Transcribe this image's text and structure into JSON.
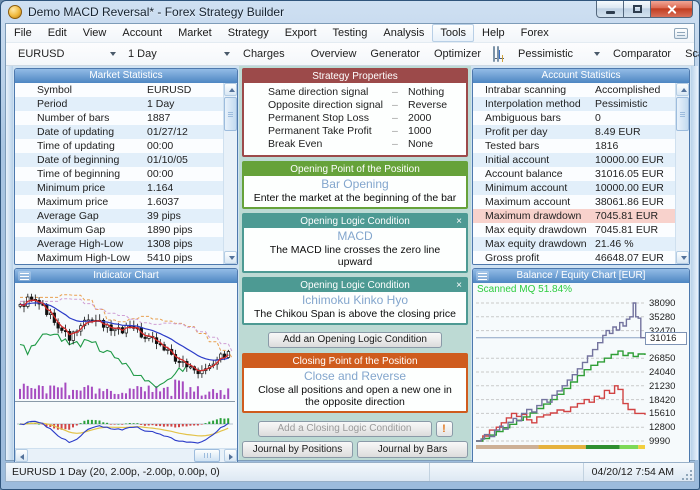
{
  "window": {
    "title": "Demo MACD Reversal* - Forex Strategy Builder"
  },
  "icons": {
    "close_x": "×"
  },
  "menu": {
    "items": [
      "File",
      "Edit",
      "View",
      "Account",
      "Market",
      "Strategy",
      "Export",
      "Testing",
      "Analysis",
      "Tools",
      "Help",
      "Forex"
    ]
  },
  "toolbar": {
    "symbol": "EURUSD",
    "period": "1 Day",
    "charges": "Charges",
    "overview": "Overview",
    "generator": "Generator",
    "optimizer": "Optimizer",
    "method": "Pessimistic",
    "comparator": "Comparator",
    "scanner": "Scanner"
  },
  "market_statistics": {
    "title": "Market Statistics",
    "rows": [
      {
        "label": "Symbol",
        "value": "EURUSD"
      },
      {
        "label": "Period",
        "value": "1 Day"
      },
      {
        "label": "Number of bars",
        "value": "1887"
      },
      {
        "label": "Date of updating",
        "value": "01/27/12"
      },
      {
        "label": "Time of updating",
        "value": "00:00"
      },
      {
        "label": "Date of beginning",
        "value": "01/10/05"
      },
      {
        "label": "Time of beginning",
        "value": "00:00"
      },
      {
        "label": "Minimum price",
        "value": "1.164"
      },
      {
        "label": "Maximum price",
        "value": "1.6037"
      },
      {
        "label": "Average Gap",
        "value": "39 pips"
      },
      {
        "label": "Maximum Gap",
        "value": "1890 pips"
      },
      {
        "label": "Average High-Low",
        "value": "1308 pips"
      },
      {
        "label": "Maximum High-Low",
        "value": "5410 pips"
      }
    ]
  },
  "account_statistics": {
    "title": "Account Statistics",
    "rows": [
      {
        "label": "Intrabar scanning",
        "value": "Accomplished"
      },
      {
        "label": "Interpolation method",
        "value": "Pessimistic"
      },
      {
        "label": "Ambiguous bars",
        "value": "0"
      },
      {
        "label": "Profit per day",
        "value": "8.49 EUR"
      },
      {
        "label": "Tested bars",
        "value": "1816"
      },
      {
        "label": "Initial account",
        "value": "10000.00 EUR"
      },
      {
        "label": "Account balance",
        "value": "31016.05 EUR"
      },
      {
        "label": "Minimum account",
        "value": "10000.00 EUR"
      },
      {
        "label": "Maximum account",
        "value": "38061.86 EUR"
      },
      {
        "label": "Maximum drawdown",
        "value": "7045.81 EUR",
        "highlight": true
      },
      {
        "label": "Max equity drawdown",
        "value": "7045.81 EUR"
      },
      {
        "label": "Max equity drawdown",
        "value": "21.46 %"
      },
      {
        "label": "Gross profit",
        "value": "46648.07 EUR"
      }
    ]
  },
  "strategy_properties": {
    "title": "Strategy Properties",
    "separator": "–",
    "rows": [
      {
        "label": "Same direction signal",
        "value": "Nothing"
      },
      {
        "label": "Opposite direction signal",
        "value": "Reverse"
      },
      {
        "label": "Permanent Stop Loss",
        "value": "2000"
      },
      {
        "label": "Permanent Take Profit",
        "value": "1000"
      },
      {
        "label": "Break Even",
        "value": "None"
      }
    ]
  },
  "opening_point": {
    "title": "Opening Point of the Position",
    "name": "Bar Opening",
    "description": "Enter the market at the beginning of the bar"
  },
  "opening_conditions": [
    {
      "title": "Opening Logic Condition",
      "name": "MACD",
      "description": "The MACD line crosses the zero line upward"
    },
    {
      "title": "Opening Logic Condition",
      "name": "Ichimoku Kinko Hyo",
      "description": "The Chikou Span is above the closing price"
    }
  ],
  "closing_point": {
    "title": "Closing Point of the Position",
    "name": "Close and Reverse",
    "description": "Close all positions and open a new one in the opposite direction"
  },
  "buttons": {
    "add_opening": "Add an Opening Logic Condition",
    "add_closing": "Add a Closing Logic Condition",
    "warning": "!",
    "journal_positions": "Journal by Positions",
    "journal_bars": "Journal by Bars"
  },
  "indicator_chart": {
    "title": "Indicator Chart"
  },
  "balance_chart": {
    "title": "Balance / Equity Chart [EUR]",
    "scanned_label": "Scanned MQ 51.84%",
    "current_value": "31016"
  },
  "status_bar": {
    "left": "EURUSD 1 Day (20, 2.00p, -2.00p, 0.00p, 0)",
    "right": "04/20/12  7:54 AM"
  },
  "chart_data": [
    {
      "type": "line",
      "name": "balance-equity-chart",
      "title": "Balance / Equity Chart [EUR]",
      "annotation": "Scanned MQ 51.84%",
      "ylim": [
        9990,
        38090
      ],
      "y_ticks": [
        38090,
        35280,
        32470,
        26850,
        24040,
        21230,
        18420,
        15610,
        12800,
        9990
      ],
      "current_balance": 31016,
      "interpolation": "step-after",
      "grid": "dashed-horizontal",
      "legend_position": "none",
      "series": [
        {
          "name": "Balance",
          "color": "#73739e",
          "points": [
            [
              0,
              10000
            ],
            [
              0.03,
              10400
            ],
            [
              0.05,
              11300
            ],
            [
              0.08,
              10900
            ],
            [
              0.11,
              12200
            ],
            [
              0.14,
              13000
            ],
            [
              0.16,
              12400
            ],
            [
              0.19,
              13800
            ],
            [
              0.22,
              14600
            ],
            [
              0.24,
              14100
            ],
            [
              0.27,
              15610
            ],
            [
              0.3,
              16400
            ],
            [
              0.33,
              15900
            ],
            [
              0.36,
              17200
            ],
            [
              0.39,
              18420
            ],
            [
              0.42,
              17900
            ],
            [
              0.45,
              19300
            ],
            [
              0.48,
              20200
            ],
            [
              0.51,
              21230
            ],
            [
              0.54,
              22400
            ],
            [
              0.57,
              23500
            ],
            [
              0.6,
              24700
            ],
            [
              0.63,
              26000
            ],
            [
              0.66,
              27300
            ],
            [
              0.69,
              28600
            ],
            [
              0.72,
              30000
            ],
            [
              0.75,
              31500
            ],
            [
              0.77,
              32470
            ],
            [
              0.79,
              31900
            ],
            [
              0.81,
              33200
            ],
            [
              0.83,
              32600
            ],
            [
              0.85,
              34100
            ],
            [
              0.87,
              33400
            ],
            [
              0.89,
              34800
            ],
            [
              0.91,
              35280
            ],
            [
              0.93,
              38090
            ],
            [
              0.945,
              35280
            ],
            [
              0.96,
              35000
            ],
            [
              0.975,
              31016
            ],
            [
              1,
              31016
            ]
          ]
        },
        {
          "name": "Equity",
          "color": "#2f9e36",
          "points": [
            [
              0,
              10000
            ],
            [
              0.04,
              10500
            ],
            [
              0.08,
              11200
            ],
            [
              0.12,
              11900
            ],
            [
              0.16,
              12700
            ],
            [
              0.2,
              13400
            ],
            [
              0.24,
              14200
            ],
            [
              0.28,
              14900
            ],
            [
              0.32,
              15700
            ],
            [
              0.36,
              16600
            ],
            [
              0.4,
              17500
            ],
            [
              0.44,
              18420
            ],
            [
              0.48,
              19500
            ],
            [
              0.52,
              20700
            ],
            [
              0.56,
              22000
            ],
            [
              0.6,
              23300
            ],
            [
              0.64,
              24500
            ],
            [
              0.68,
              25400
            ],
            [
              0.72,
              26100
            ],
            [
              0.76,
              26850
            ],
            [
              0.8,
              27600
            ],
            [
              0.84,
              28300
            ],
            [
              0.87,
              27400
            ],
            [
              0.9,
              27900
            ],
            [
              0.93,
              27200
            ],
            [
              0.96,
              27700
            ],
            [
              1,
              27500
            ]
          ]
        },
        {
          "name": "Long-Short balance",
          "color": "#d14343",
          "points": [
            [
              0,
              10000
            ],
            [
              0.04,
              11000
            ],
            [
              0.08,
              12200
            ],
            [
              0.12,
              12800
            ],
            [
              0.15,
              13700
            ],
            [
              0.18,
              14700
            ],
            [
              0.21,
              15610
            ],
            [
              0.24,
              15000
            ],
            [
              0.27,
              15400
            ],
            [
              0.3,
              14300
            ],
            [
              0.33,
              13700
            ],
            [
              0.36,
              14900
            ],
            [
              0.4,
              15300
            ],
            [
              0.44,
              15700
            ],
            [
              0.48,
              16300
            ],
            [
              0.52,
              16000
            ],
            [
              0.56,
              16900
            ],
            [
              0.6,
              17600
            ],
            [
              0.64,
              18420
            ],
            [
              0.67,
              17900
            ],
            [
              0.7,
              19100
            ],
            [
              0.73,
              18700
            ],
            [
              0.76,
              20300
            ],
            [
              0.79,
              19700
            ],
            [
              0.82,
              21230
            ],
            [
              0.84,
              20500
            ],
            [
              0.87,
              17600
            ],
            [
              0.9,
              16400
            ],
            [
              0.94,
              15610
            ],
            [
              1,
              15300
            ]
          ]
        }
      ],
      "quality_strip": [
        {
          "color": "#cdb096",
          "width": 0.37
        },
        {
          "color": "#e6b23e",
          "width": 0.28
        },
        {
          "color": "#2f8f2f",
          "width": 0.2
        },
        {
          "color": "#7ed957",
          "width": 0.11
        },
        {
          "color": "#f2cf3e",
          "width": 0.04
        }
      ]
    },
    {
      "type": "candlestick",
      "name": "indicator-chart",
      "title": "Indicator Chart",
      "bars": 56,
      "seed": 9,
      "panes": [
        "price with ichimoku lines and volume",
        "macd histogram with signal lines"
      ],
      "trend": [
        [
          0,
          0.2
        ],
        [
          0.06,
          0.08
        ],
        [
          0.12,
          0.22
        ],
        [
          0.18,
          0.4
        ],
        [
          0.24,
          0.52
        ],
        [
          0.3,
          0.36
        ],
        [
          0.36,
          0.3
        ],
        [
          0.42,
          0.42
        ],
        [
          0.47,
          0.46
        ],
        [
          0.53,
          0.4
        ],
        [
          0.59,
          0.5
        ],
        [
          0.65,
          0.58
        ],
        [
          0.72,
          0.68
        ],
        [
          0.79,
          0.82
        ],
        [
          0.86,
          0.88
        ],
        [
          0.92,
          0.8
        ],
        [
          1,
          0.66
        ]
      ],
      "line_colors": {
        "ma_fast": "#d42a2a",
        "ma_slow": "#2b3bc8",
        "chikou": "#1f9a46",
        "senkou_a": "#e8a050",
        "senkou_b": "#cf9fd4",
        "volume": "#a64bc0",
        "macd": "#2b3bc8",
        "signal": "#e3c34a",
        "hist_up": "#2aa03a",
        "hist_down": "#d04545"
      }
    }
  ]
}
